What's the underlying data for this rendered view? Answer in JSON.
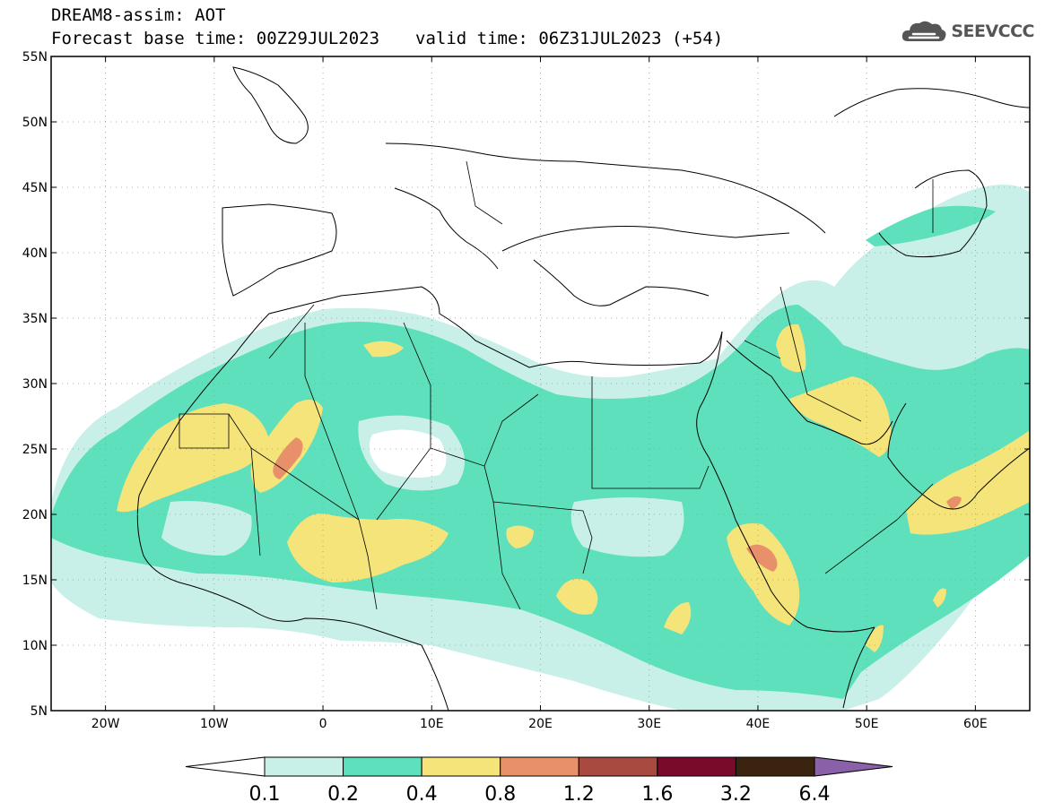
{
  "header": {
    "line1": "DREAM8-assim: AOT",
    "base_time": "Forecast base time: 00Z29JUL2023",
    "valid_time": "valid time: 06Z31JUL2023 (+54)"
  },
  "logo": {
    "text": "SEEVCCC",
    "icon": "cloud-icon",
    "color": "#555555"
  },
  "map": {
    "lon_range": [
      -25,
      65
    ],
    "lat_range": [
      5,
      55
    ],
    "lat_ticks": [
      {
        "value": 55,
        "label": "55N"
      },
      {
        "value": 50,
        "label": "50N"
      },
      {
        "value": 45,
        "label": "45N"
      },
      {
        "value": 40,
        "label": "40N"
      },
      {
        "value": 35,
        "label": "35N"
      },
      {
        "value": 30,
        "label": "30N"
      },
      {
        "value": 25,
        "label": "25N"
      },
      {
        "value": 20,
        "label": "20N"
      },
      {
        "value": 15,
        "label": "15N"
      },
      {
        "value": 10,
        "label": "10N"
      },
      {
        "value": 5,
        "label": "5N"
      }
    ],
    "lon_ticks": [
      {
        "value": -20,
        "label": "20W"
      },
      {
        "value": -10,
        "label": "10W"
      },
      {
        "value": 0,
        "label": "0"
      },
      {
        "value": 10,
        "label": "10E"
      },
      {
        "value": 20,
        "label": "20E"
      },
      {
        "value": 30,
        "label": "30E"
      },
      {
        "value": 40,
        "label": "40E"
      },
      {
        "value": 50,
        "label": "50E"
      },
      {
        "value": 60,
        "label": "60E"
      }
    ],
    "grid": "dotted"
  },
  "colorbar": {
    "levels": [
      "0.1",
      "0.2",
      "0.4",
      "0.8",
      "1.2",
      "1.6",
      "3.2",
      "6.4"
    ],
    "colors": {
      "under": "#ffffff",
      "bins": [
        "#c8f0e8",
        "#5ee0bc",
        "#f5e47a",
        "#e8906a",
        "#a84a40",
        "#7a0a2a",
        "#3a2410"
      ],
      "over": "#8a60a8"
    }
  }
}
